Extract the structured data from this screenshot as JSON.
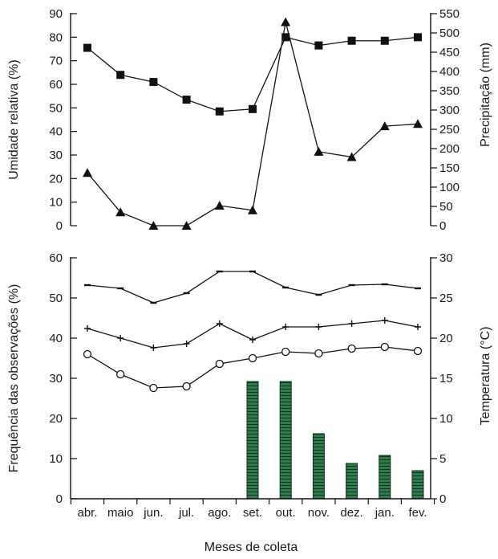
{
  "colors": {
    "axis": "#111111",
    "line": "#111111",
    "bar_fill": "#2e7d4f",
    "bar_hatch": "#0b2e17"
  },
  "chart_data": [
    {
      "type": "line",
      "categories": [
        "abr.",
        "maio",
        "jun.",
        "jul.",
        "ago.",
        "set.",
        "out.",
        "nov.",
        "dez.",
        "jan.",
        "fev."
      ],
      "ylabel": "Umidade relativa (%)",
      "y2label": "Precipitação (mm)",
      "ylim": [
        0,
        90
      ],
      "yticks": [
        0,
        10,
        20,
        30,
        40,
        50,
        60,
        70,
        80,
        90
      ],
      "y2lim": [
        0,
        550
      ],
      "y2ticks": [
        0,
        50,
        100,
        150,
        200,
        250,
        300,
        350,
        400,
        450,
        500,
        550
      ],
      "grid": false,
      "series": [
        {
          "marker": "square",
          "axis": "left",
          "values": [
            75.5,
            64,
            61,
            53.5,
            48.5,
            49.5,
            80,
            76.5,
            78.5,
            78.5,
            80
          ]
        },
        {
          "marker": "triangle",
          "axis": "right",
          "values": [
            137,
            35,
            0,
            0,
            52,
            40,
            528,
            192,
            178,
            258,
            264
          ]
        }
      ]
    },
    {
      "type": "bar+line",
      "categories": [
        "abr.",
        "maio",
        "jun.",
        "jul.",
        "ago.",
        "set.",
        "out.",
        "nov.",
        "dez.",
        "jan.",
        "fev."
      ],
      "xlabel": "Meses de coleta",
      "ylabel": "Frequência das observações (%)",
      "y2label": "Temperatura (°C)",
      "ylim": [
        0,
        60
      ],
      "yticks": [
        0,
        10,
        20,
        30,
        40,
        50,
        60
      ],
      "y2lim": [
        0,
        30
      ],
      "y2ticks": [
        0,
        5,
        10,
        15,
        20,
        25,
        30
      ],
      "grid": false,
      "bars": {
        "axis": "left",
        "values": [
          0,
          0,
          0,
          0,
          0,
          29.2,
          29.2,
          16.2,
          8.8,
          10.8,
          7
        ]
      },
      "series": [
        {
          "marker": "dash",
          "axis": "right",
          "values": [
            26.6,
            26.2,
            24.4,
            25.6,
            28.3,
            28.3,
            26.3,
            25.4,
            26.6,
            26.7,
            26.2
          ]
        },
        {
          "marker": "plus",
          "axis": "right",
          "values": [
            21.2,
            20.0,
            18.8,
            19.3,
            21.8,
            19.8,
            21.4,
            21.4,
            21.8,
            22.2,
            21.4
          ]
        },
        {
          "marker": "circle",
          "axis": "right",
          "values": [
            18.0,
            15.5,
            13.8,
            14.0,
            16.8,
            17.5,
            18.3,
            18.1,
            18.7,
            18.9,
            18.4
          ]
        }
      ]
    }
  ]
}
